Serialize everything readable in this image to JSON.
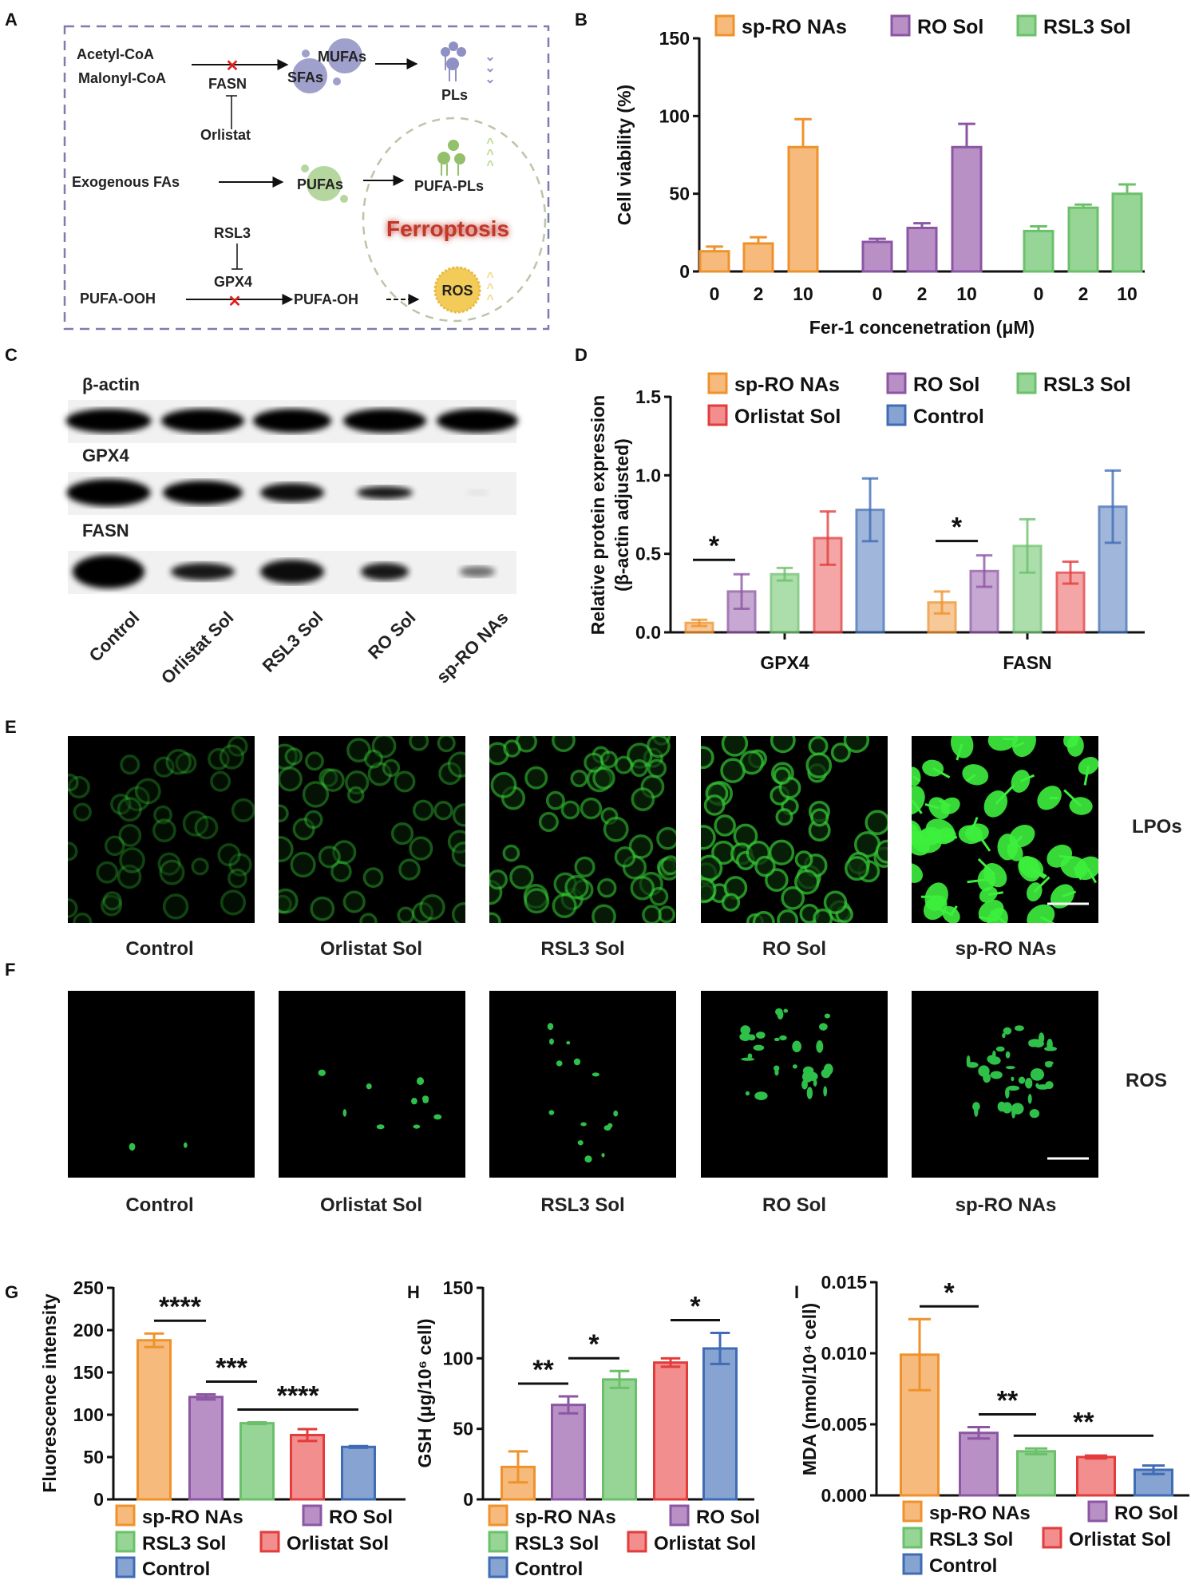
{
  "panel_letters": {
    "a": "A",
    "b": "B",
    "c": "C",
    "d": "D",
    "e": "E",
    "f": "F",
    "g": "G",
    "h": "H",
    "i": "I"
  },
  "colors": {
    "sp-RO NAs": {
      "fill": "#f6bb7c",
      "stroke": "#ef922c"
    },
    "RO Sol": {
      "fill": "#b890c6",
      "stroke": "#8b56a3"
    },
    "RSL3 Sol": {
      "fill": "#96d596",
      "stroke": "#6cc06c"
    },
    "Orlistat Sol": {
      "fill": "#f28e8e",
      "stroke": "#e23c3c"
    },
    "Control": {
      "fill": "#86a3d2",
      "stroke": "#3f6cb4"
    }
  },
  "diagram": {
    "acetyl_coa": "Acetyl-CoA",
    "malonyl_coa": "Malonyl-CoA",
    "fasn": "FASN",
    "orlistat": "Orlistat",
    "mufas": "MUFAs",
    "sfas": "SFAs",
    "pls": "PLs",
    "exogenous_fas": "Exogenous FAs",
    "pufas": "PUFAs",
    "pufa_pls": "PUFA-PLs",
    "ferroptosis": "Ferroptosis",
    "rsl3": "RSL3",
    "gpx4": "GPX4",
    "pufa_ooh": "PUFA-OOH",
    "pufa_oh": "PUFA-OH",
    "ros": "ROS"
  },
  "western_blot": {
    "rows": [
      "β-actin",
      "GPX4",
      "FASN"
    ],
    "lanes": [
      "Control",
      "Orlistat Sol",
      "RSL3 Sol",
      "RO Sol",
      "sp-RO NAs"
    ]
  },
  "microscopy": {
    "lpo_row_label": "LPOs",
    "ros_row_label": "ROS",
    "lanes": [
      "Control",
      "Orlistat Sol",
      "RSL3 Sol",
      "RO Sol",
      "sp-RO NAs"
    ]
  },
  "chart_data": [
    {
      "id": "B",
      "type": "bar",
      "grouped": true,
      "xlabel": "Fer-1 concenetration (μM)",
      "ylabel": "Cell viability (%)",
      "ylim": [
        0,
        150
      ],
      "yticks": [
        "0",
        "50",
        "100",
        "150"
      ],
      "categories": [
        "0",
        "2",
        "10"
      ],
      "legend": "top",
      "series": [
        {
          "name": "sp-RO NAs",
          "values": [
            13,
            18,
            80
          ],
          "errors": [
            3,
            4,
            18
          ]
        },
        {
          "name": "RO Sol",
          "values": [
            19,
            28,
            80
          ],
          "errors": [
            2,
            3,
            15
          ]
        },
        {
          "name": "RSL3 Sol",
          "values": [
            26,
            41,
            50
          ],
          "errors": [
            3,
            2,
            6
          ]
        }
      ]
    },
    {
      "id": "D",
      "type": "bar",
      "grouped": true,
      "xlabel": "",
      "ylabel": [
        "Relative protein expression",
        "(β-actin adjusted)"
      ],
      "ylim": [
        0,
        1.5
      ],
      "yticks": [
        "0.0",
        "0.5",
        "1.0",
        "1.5"
      ],
      "categories": [
        "GPX4",
        "FASN"
      ],
      "legend": "top",
      "series": [
        {
          "name": "sp-RO NAs",
          "values": [
            0.06,
            0.19
          ],
          "errors": [
            0.02,
            0.07
          ]
        },
        {
          "name": "RO Sol",
          "values": [
            0.26,
            0.39
          ],
          "errors": [
            0.11,
            0.1
          ]
        },
        {
          "name": "RSL3 Sol",
          "values": [
            0.37,
            0.55
          ],
          "errors": [
            0.04,
            0.17
          ]
        },
        {
          "name": "Orlistat Sol",
          "values": [
            0.6,
            0.38
          ],
          "errors": [
            0.17,
            0.07
          ]
        },
        {
          "name": "Control",
          "values": [
            0.78,
            0.8
          ],
          "errors": [
            0.2,
            0.23
          ]
        }
      ],
      "significance": [
        {
          "category": "GPX4",
          "from": "sp-RO NAs",
          "to": "RO Sol",
          "label": "*"
        },
        {
          "category": "FASN",
          "from": "sp-RO NAs",
          "to": "RO Sol",
          "label": "*"
        }
      ]
    },
    {
      "id": "G",
      "type": "bar",
      "grouped": false,
      "ylabel": "Fluorescence intensity",
      "xlabel": "",
      "ylim": [
        0,
        250
      ],
      "yticks": [
        "0",
        "50",
        "100",
        "150",
        "200",
        "250"
      ],
      "categories": [
        "sp-RO NAs",
        "RO Sol",
        "RSL3 Sol",
        "Orlistat Sol",
        "Control"
      ],
      "values": [
        188,
        121,
        90,
        76,
        62
      ],
      "errors": [
        8,
        3,
        1,
        7,
        1
      ],
      "legend": "bottom",
      "significance": [
        {
          "from": "sp-RO NAs",
          "to": "RO Sol",
          "label": "****"
        },
        {
          "from": "RO Sol",
          "to": "RSL3 Sol",
          "label": "***"
        },
        {
          "from": "RSL3 Sol",
          "to": "Control",
          "label": "****"
        }
      ]
    },
    {
      "id": "H",
      "type": "bar",
      "grouped": false,
      "ylabel": "GSH (μg/10⁶ cell)",
      "xlabel": "",
      "ylim": [
        0,
        150
      ],
      "yticks": [
        "0",
        "50",
        "100",
        "150"
      ],
      "categories": [
        "sp-RO NAs",
        "RO Sol",
        "RSL3 Sol",
        "Orlistat Sol",
        "Control"
      ],
      "values": [
        23,
        67,
        85,
        97,
        107
      ],
      "errors": [
        11,
        6,
        6,
        3,
        11
      ],
      "legend": "bottom",
      "significance": [
        {
          "from": "sp-RO NAs",
          "to": "RO Sol",
          "label": "**"
        },
        {
          "from": "RO Sol",
          "to": "RSL3 Sol",
          "label": "*"
        },
        {
          "from": "Orlistat Sol",
          "to": "Control",
          "label": "*"
        }
      ]
    },
    {
      "id": "I",
      "type": "bar",
      "grouped": false,
      "ylabel": "MDA (nmol/10⁴ cell)",
      "xlabel": "",
      "ylim": [
        0,
        0.015
      ],
      "yticks": [
        "0.000",
        "0.005",
        "0.010",
        "0.015"
      ],
      "categories": [
        "sp-RO NAs",
        "RO Sol",
        "RSL3 Sol",
        "Orlistat Sol",
        "Control"
      ],
      "values": [
        0.0099,
        0.0044,
        0.0031,
        0.0027,
        0.0018
      ],
      "errors": [
        0.0025,
        0.0004,
        0.0002,
        0.0001,
        0.0003
      ],
      "legend": "bottom",
      "significance": [
        {
          "from": "sp-RO NAs",
          "to": "RO Sol",
          "label": "*"
        },
        {
          "from": "RO Sol",
          "to": "RSL3 Sol",
          "label": "**"
        },
        {
          "from": "RSL3 Sol",
          "to": "Control",
          "label": "**"
        }
      ]
    }
  ]
}
